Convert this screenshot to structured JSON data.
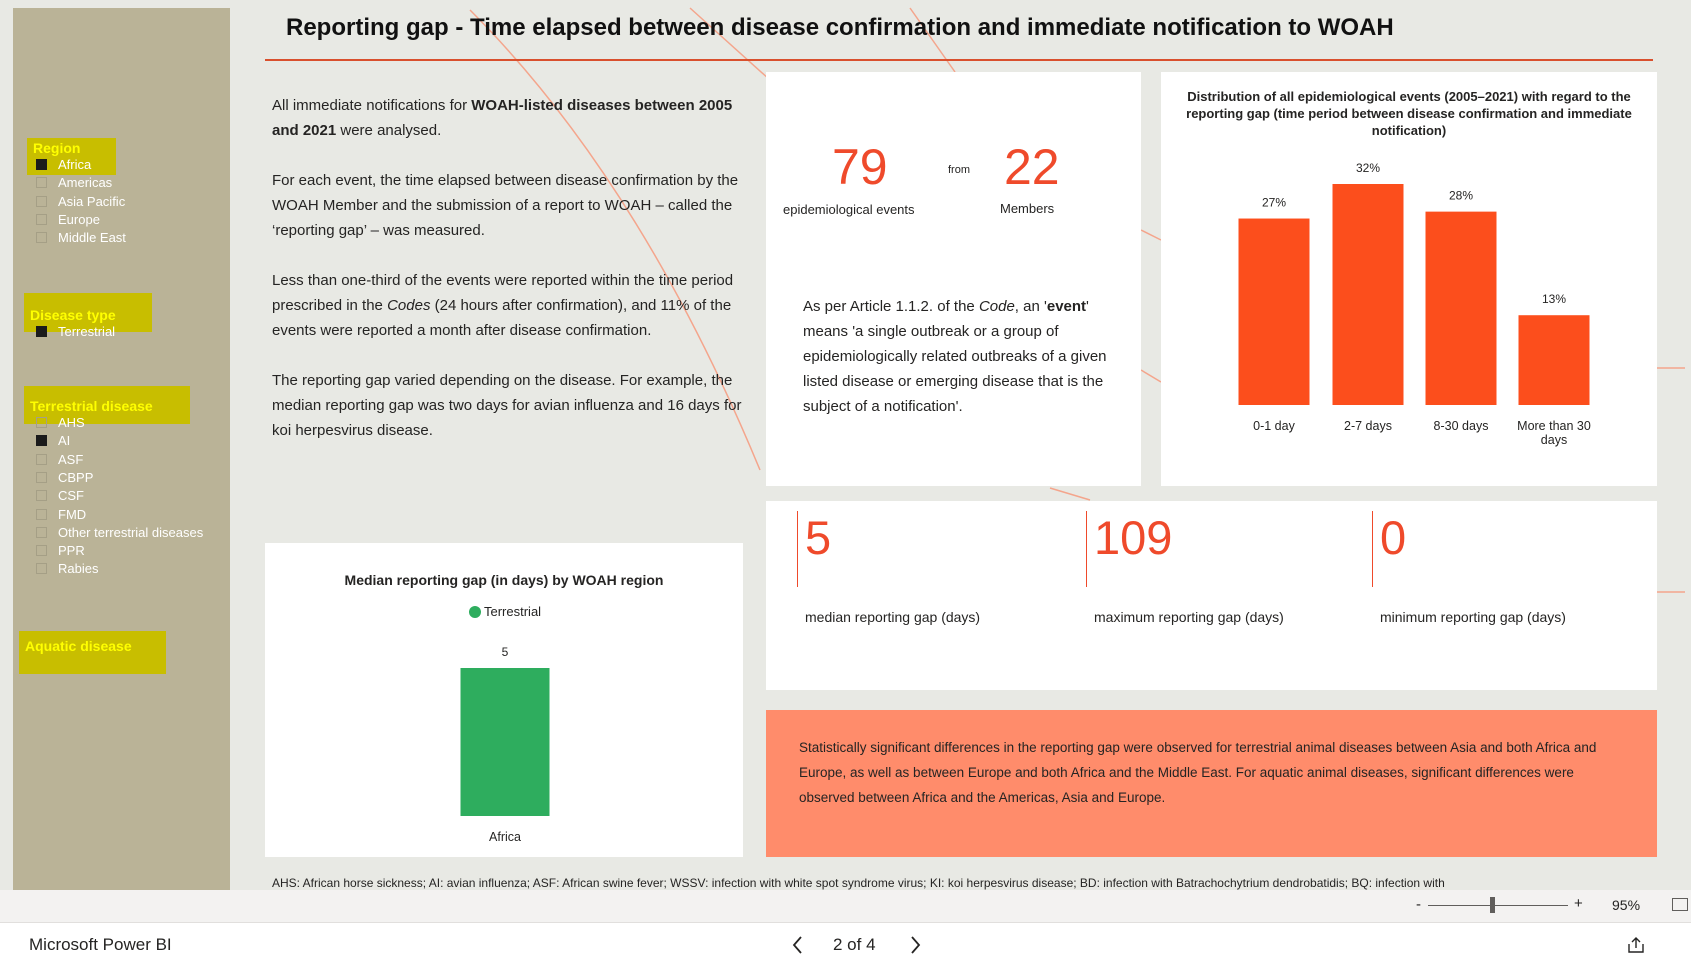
{
  "sidebar": {
    "filters": [
      {
        "title": "Region",
        "items": [
          {
            "label": "Africa",
            "checked": true
          },
          {
            "label": "Americas",
            "checked": false
          },
          {
            "label": "Asia Pacific",
            "checked": false
          },
          {
            "label": "Europe",
            "checked": false
          },
          {
            "label": "Middle East",
            "checked": false
          }
        ]
      },
      {
        "title": "Disease type",
        "items": [
          {
            "label": "Terrestrial",
            "checked": true
          }
        ]
      },
      {
        "title": "Terrestrial disease",
        "items": [
          {
            "label": "AHS",
            "checked": false
          },
          {
            "label": "AI",
            "checked": true
          },
          {
            "label": "ASF",
            "checked": false
          },
          {
            "label": "CBPP",
            "checked": false
          },
          {
            "label": "CSF",
            "checked": false
          },
          {
            "label": "FMD",
            "checked": false
          },
          {
            "label": "Other terrestrial diseases",
            "checked": false
          },
          {
            "label": "PPR",
            "checked": false
          },
          {
            "label": "Rabies",
            "checked": false
          }
        ]
      },
      {
        "title": "Aquatic disease",
        "items": []
      }
    ]
  },
  "header": {
    "title": "Reporting gap - Time elapsed between disease confirmation and immediate notification to WOAH"
  },
  "intro": {
    "p1": [
      "All immediate notifications for ",
      "WOAH-listed diseases between 2005 and 2021",
      " were analysed."
    ],
    "p2": "For each event, the time elapsed between disease confirmation by the WOAH Member and the submission of a report to WOAH – called the ‘reporting gap’ – was measured.",
    "p3": [
      "Less than one-third of the events were reported within the time period prescribed in the ",
      "Codes",
      " (24 hours after confirmation), and 11% of the events were reported a month after disease confirmation."
    ],
    "p4": "The reporting gap varied depending on the disease. For example, the median reporting gap was two days for avian influenza and 16 days for koi herpesvirus disease."
  },
  "events_card": {
    "events": 79,
    "events_label": "epidemiological events",
    "from": "from",
    "members": 22,
    "members_label": "Members",
    "definition": [
      "As per Article 1.1.2. of the ",
      "Code",
      ", an '",
      "event",
      "' means 'a single outbreak or a group of epidemiologically related outbreaks of a given listed disease or emerging disease that is the subject of a notification'."
    ]
  },
  "gap_card": {
    "items": [
      {
        "value": 5,
        "label": "median reporting gap (days)"
      },
      {
        "value": 109,
        "label": "maximum reporting gap (days)"
      },
      {
        "value": 0,
        "label": "minimum reporting gap (days)"
      }
    ]
  },
  "note": "Statistically significant differences in the reporting gap were observed for terrestrial animal diseases between Asia and both Africa and Europe, as well as between Europe and both Africa and the Middle East. For aquatic animal diseases, significant differences were observed between Africa and the Americas, Asia and Europe.",
  "footer": "AHS: African horse sickness; AI: avian influenza; ASF: African swine fever; WSSV: infection with white spot syndrome virus; KI: koi herpesvirus disease; BD: infection with Batrachochytrium dendrobatidis; BQ: infection with",
  "chart_data": [
    {
      "type": "bar",
      "title": "Distribution of all epidemiological events (2005–2021) with regard to the reporting gap (time period between disease confirmation and immediate notification)",
      "categories": [
        "0-1 day",
        "2-7 days",
        "8-30 days",
        "More than 30 days"
      ],
      "values": [
        27,
        32,
        28,
        13
      ],
      "value_labels": [
        "27%",
        "32%",
        "28%",
        "13%"
      ],
      "color": "#fc4e1c"
    },
    {
      "type": "bar",
      "title": "Median reporting gap (in days) by WOAH region",
      "categories": [
        "Africa"
      ],
      "series": [
        {
          "name": "Terrestrial",
          "color": "#2ead5e",
          "values": [
            5
          ]
        }
      ]
    }
  ],
  "statusbar": {
    "zoom_minus": "-",
    "zoom_plus": "+",
    "zoom": "95%",
    "app": "Microsoft Power BI",
    "page": "2 of 4"
  }
}
